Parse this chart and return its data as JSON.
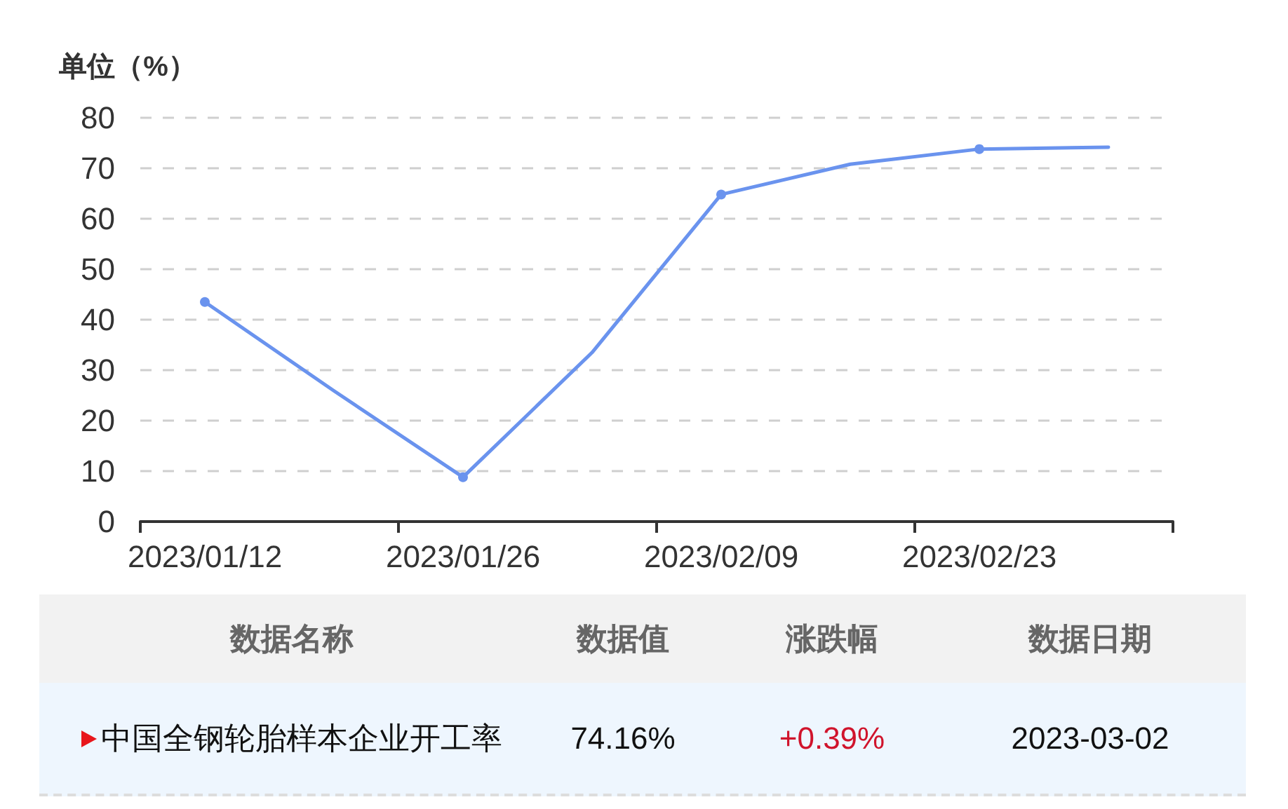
{
  "chart_data": [
    {
      "type": "line",
      "ylabel": "单位（%）",
      "categories": [
        "2023/01/12",
        null,
        "2023/01/26",
        null,
        "2023/02/09",
        null,
        "2023/02/23",
        null
      ],
      "values": [
        43.5,
        25.9,
        8.8,
        33.5,
        64.8,
        70.8,
        73.8,
        74.16
      ],
      "color": "#6a93ee",
      "ylim": [
        0,
        80
      ],
      "yticks": [
        0,
        10,
        20,
        30,
        40,
        50,
        60,
        70,
        80
      ],
      "grid": "y",
      "marker": "circle"
    },
    {
      "type": "other",
      "categories": [
        "数据名称",
        "数据值",
        "涨跌幅",
        "数据日期"
      ],
      "annotations": [
        "中国全钢轮胎样本企业开工率",
        "74.16%",
        "+0.39%",
        "2023-03-02"
      ]
    }
  ]
}
